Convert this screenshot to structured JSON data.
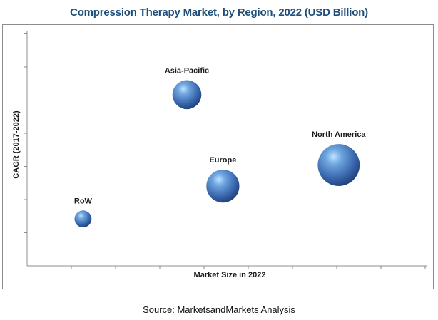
{
  "chart_data": {
    "type": "scatter",
    "title": "Compression Therapy Market, by Region, 2022 (USD Billion)",
    "xlabel": "Market Size in 2022",
    "ylabel": "CAGR (2017-2022)",
    "xlim": [
      0,
      10
    ],
    "ylim": [
      0,
      10
    ],
    "grid": false,
    "bubble_color": "#3f73b8",
    "points": [
      {
        "label": "Asia-Pacific",
        "x": 4.0,
        "y": 7.3,
        "size": 29
      },
      {
        "label": "North America",
        "x": 7.8,
        "y": 4.3,
        "size": 42
      },
      {
        "label": "Europe",
        "x": 4.9,
        "y": 3.4,
        "size": 33
      },
      {
        "label": "RoW",
        "x": 1.4,
        "y": 2.0,
        "size": 17
      }
    ]
  },
  "source": "Source: MarketsandMarkets Analysis"
}
